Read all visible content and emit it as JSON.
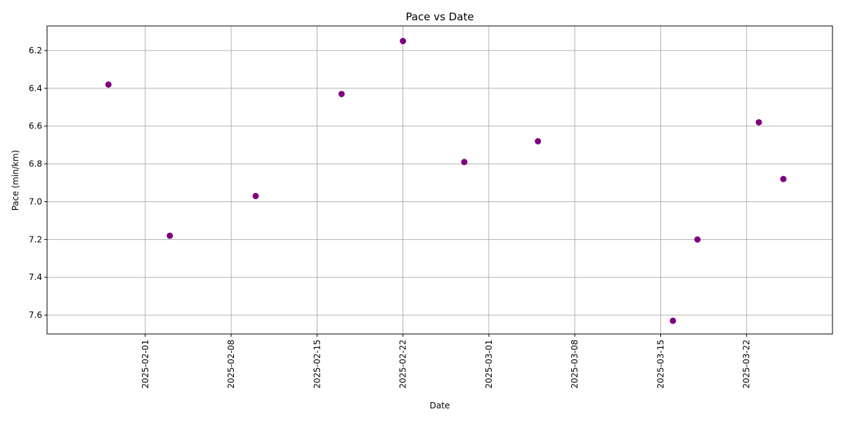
{
  "colors": {
    "marker": "#800080",
    "grid": "#b0b0b0",
    "axis": "#000000",
    "background": "#ffffff"
  },
  "chart_data": {
    "type": "scatter",
    "title": "Pace vs Date",
    "xlabel": "Date",
    "ylabel": "Pace (min/km)",
    "grid": true,
    "y_inverted": true,
    "xlim": [
      "2025-01-24",
      "2025-03-29"
    ],
    "ylim": [
      6.07,
      7.7
    ],
    "x_ticks": [
      "2025-02-01",
      "2025-02-08",
      "2025-02-15",
      "2025-02-22",
      "2025-03-01",
      "2025-03-08",
      "2025-03-15",
      "2025-03-22"
    ],
    "y_ticks": [
      6.2,
      6.4,
      6.6,
      6.8,
      7.0,
      7.2,
      7.4,
      7.6
    ],
    "y_tick_labels": [
      "6.2",
      "6.4",
      "6.6",
      "6.8",
      "7.0",
      "7.2",
      "7.4",
      "7.6"
    ],
    "points": [
      {
        "x": "2025-01-29",
        "y": 6.38
      },
      {
        "x": "2025-02-03",
        "y": 7.18
      },
      {
        "x": "2025-02-10",
        "y": 6.97
      },
      {
        "x": "2025-02-17",
        "y": 6.43
      },
      {
        "x": "2025-02-22",
        "y": 6.15
      },
      {
        "x": "2025-02-27",
        "y": 6.79
      },
      {
        "x": "2025-03-05",
        "y": 6.68
      },
      {
        "x": "2025-03-16",
        "y": 7.63
      },
      {
        "x": "2025-03-18",
        "y": 7.2
      },
      {
        "x": "2025-03-23",
        "y": 6.58
      },
      {
        "x": "2025-03-25",
        "y": 6.88
      }
    ]
  }
}
